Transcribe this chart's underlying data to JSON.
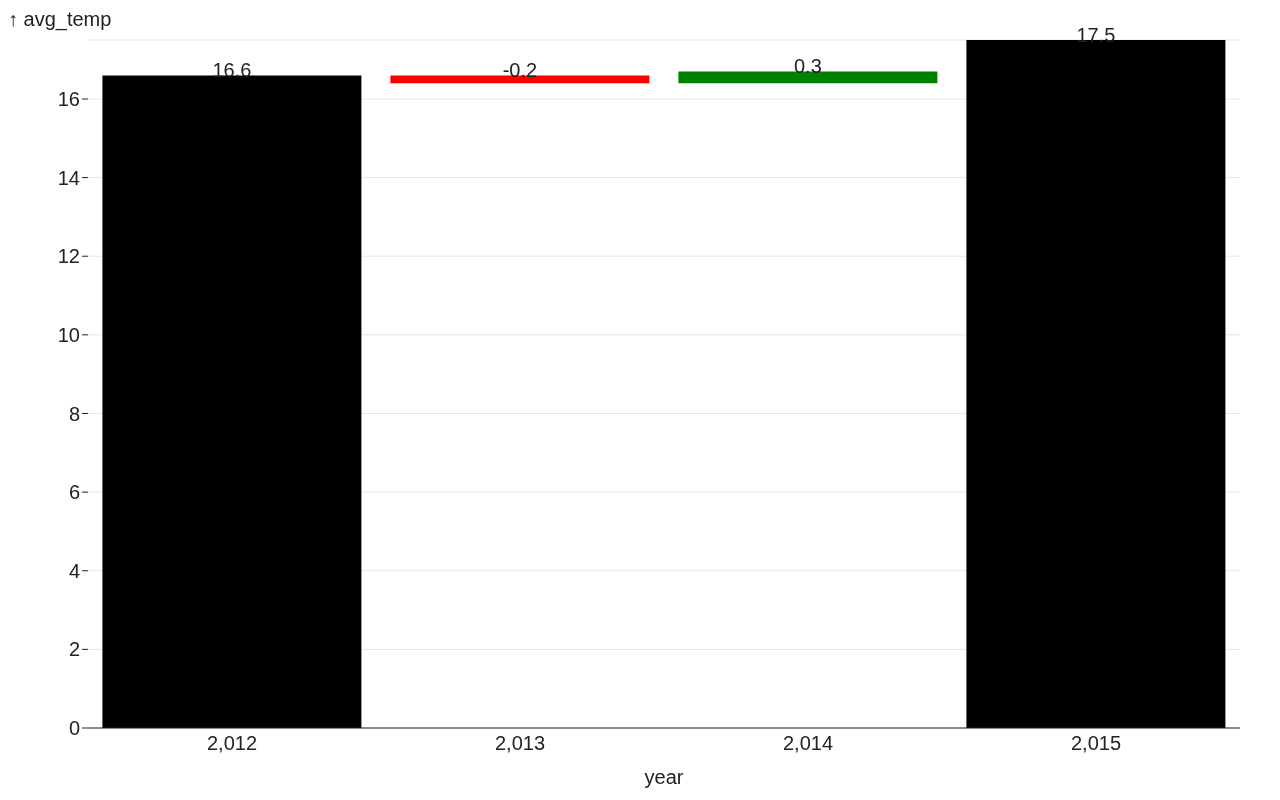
{
  "chart_data": {
    "type": "bar",
    "xlabel": "year",
    "ylabel": "↑ avg_temp",
    "categories": [
      "2,012",
      "2,013",
      "2,014",
      "2,015"
    ],
    "values": [
      16.6,
      -0.2,
      0.3,
      17.5
    ],
    "base": [
      0,
      16.6,
      16.4,
      0
    ],
    "colors": [
      "#000000",
      "#ff0000",
      "#008000",
      "#000000"
    ],
    "ylim": [
      0,
      17.5
    ],
    "yticks": [
      0,
      2,
      4,
      6,
      8,
      10,
      12,
      14,
      16
    ],
    "grid": "y",
    "data_labels": true
  }
}
